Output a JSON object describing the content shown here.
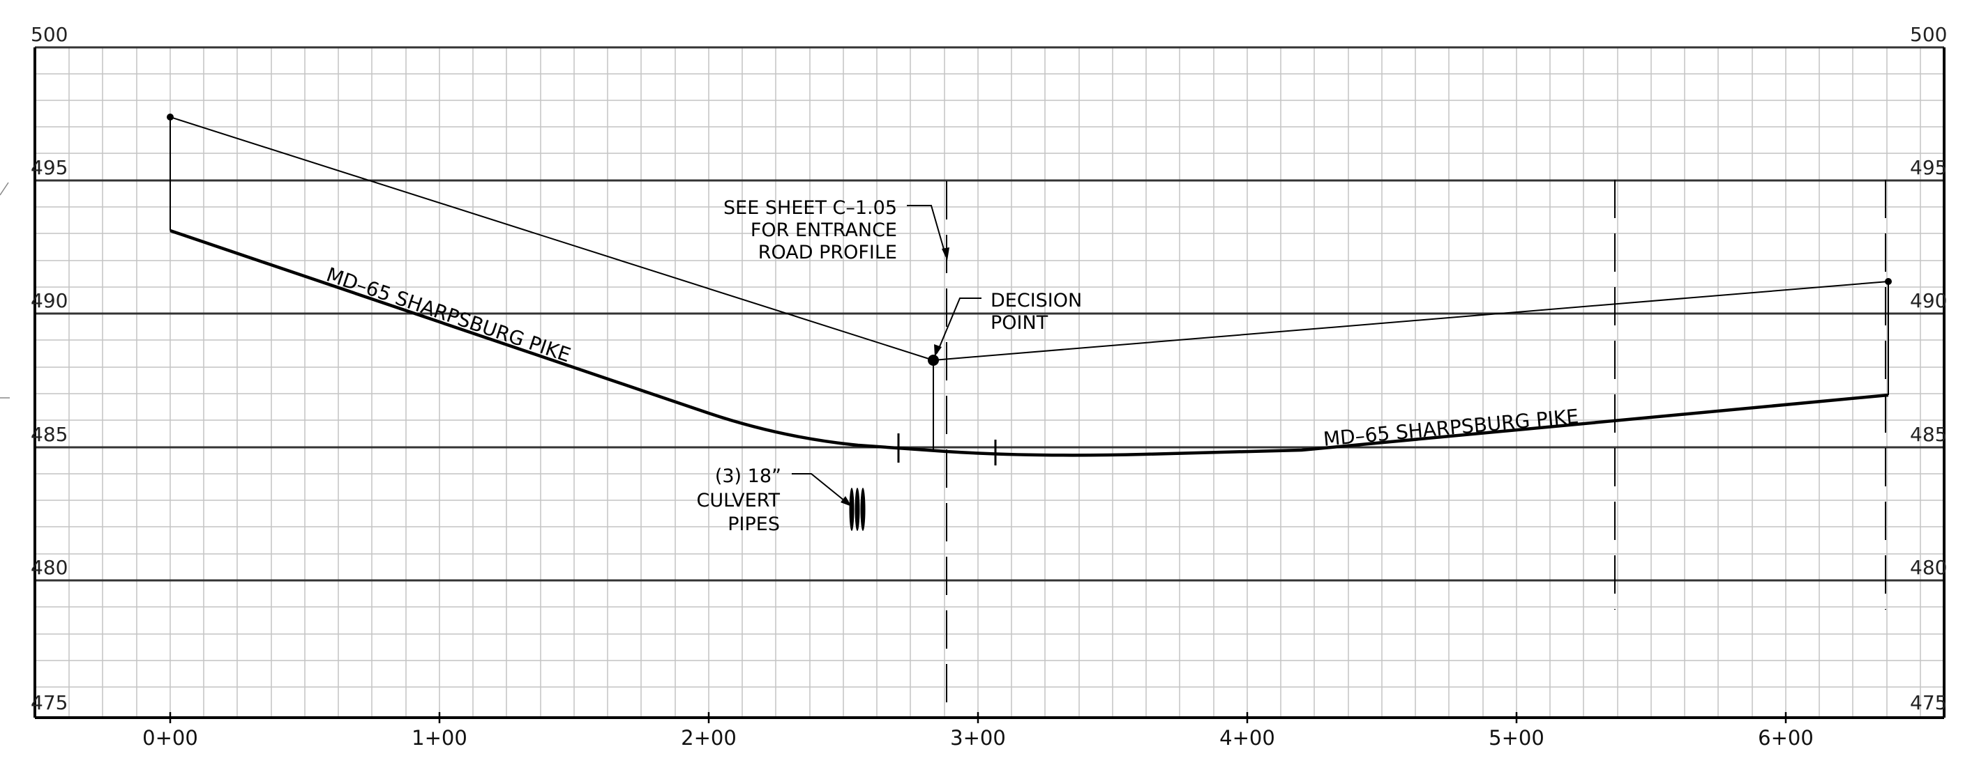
{
  "elevation_labels": [
    "500",
    "495",
    "490",
    "485",
    "480",
    "475"
  ],
  "station_labels": [
    "0+00",
    "1+00",
    "2+00",
    "3+00",
    "4+00",
    "5+00",
    "6+00"
  ],
  "annotations": {
    "see_sheet": [
      "SEE SHEET C–1.05",
      "FOR ENTRANCE",
      "ROAD PROFILE"
    ],
    "decision_point": [
      "DECISION",
      "POINT"
    ],
    "culvert": [
      "(3) 18”",
      "CULVERT",
      "PIPES"
    ],
    "road_left": "MD–65 SHARPSBURG PIKE",
    "road_right": "MD–65 SHARPSBURG PIKE"
  },
  "profile": {
    "sight_line": [
      [
        0,
        497
      ],
      [
        285,
        488
      ],
      [
        641,
        491
      ]
    ],
    "road_profile": [
      [
        0,
        492.8
      ],
      [
        150,
        489
      ],
      [
        200,
        486.2
      ],
      [
        250,
        485.05
      ],
      [
        300,
        484.8
      ],
      [
        340,
        484.6
      ],
      [
        400,
        484.7
      ],
      [
        450,
        484.8
      ],
      [
        500,
        485.5
      ],
      [
        560,
        486.2
      ],
      [
        641,
        486.9
      ]
    ]
  },
  "colors": {
    "grid_minor": "#c4c4c4",
    "grid_major": "#333333",
    "ink": "#000000"
  }
}
